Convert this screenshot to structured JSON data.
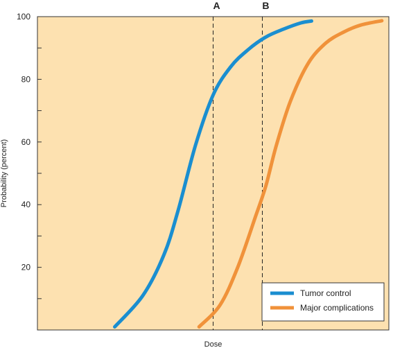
{
  "chart_data": {
    "type": "line",
    "title": "",
    "xlabel": "Dose",
    "ylabel": "Probability (percent)",
    "xlim": [
      0,
      100
    ],
    "ylim": [
      0,
      100
    ],
    "y_tick_labels": [
      "20",
      "40",
      "60",
      "80",
      "100"
    ],
    "y_tick_values": [
      20,
      40,
      60,
      80,
      100
    ],
    "y_minor_ticks": [
      10,
      30,
      50,
      70,
      90
    ],
    "grid": false,
    "background_color": "#fde1b0",
    "legend_position": "bottom-right",
    "series": [
      {
        "name": "Tumor control",
        "color": "#1a8ed0",
        "x": [
          22,
          30,
          36,
          40,
          45,
          50,
          55,
          60,
          65,
          70,
          75,
          78
        ],
        "y": [
          1,
          11,
          24,
          38,
          59,
          75,
          84,
          89.5,
          93.5,
          96,
          98,
          98.6
        ]
      },
      {
        "name": "Major complications",
        "color": "#f0923a",
        "x": [
          46,
          52,
          57,
          62,
          65,
          68,
          72,
          77,
          82,
          87,
          92,
          98
        ],
        "y": [
          1,
          8,
          20,
          36,
          46,
          59,
          73,
          85,
          91.5,
          95,
          97.3,
          98.7
        ]
      }
    ],
    "reference_lines": [
      {
        "label": "A",
        "x": 50
      },
      {
        "label": "B",
        "x": 64
      }
    ]
  }
}
